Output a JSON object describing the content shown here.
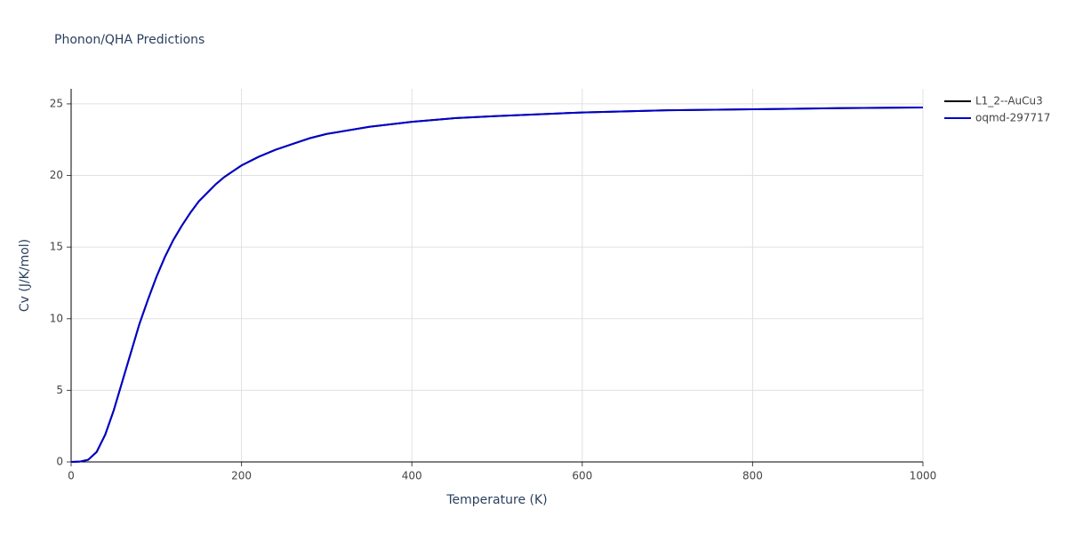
{
  "chart_data": {
    "type": "line",
    "title": "Phonon/QHA Predictions",
    "xlabel": "Temperature (K)",
    "ylabel": "Cv (J/K/mol)",
    "x": [
      0,
      10,
      20,
      30,
      40,
      50,
      60,
      70,
      80,
      90,
      100,
      110,
      120,
      130,
      140,
      150,
      160,
      170,
      180,
      190,
      200,
      220,
      240,
      260,
      280,
      300,
      350,
      400,
      450,
      500,
      600,
      700,
      800,
      900,
      1000
    ],
    "series": [
      {
        "name": "L1_2--AuCu3",
        "color": "#000000",
        "values": [
          0,
          0.02,
          0.15,
          0.7,
          1.9,
          3.6,
          5.6,
          7.6,
          9.6,
          11.3,
          12.9,
          14.3,
          15.5,
          16.5,
          17.4,
          18.2,
          18.8,
          19.4,
          19.9,
          20.3,
          20.7,
          21.3,
          21.8,
          22.2,
          22.6,
          22.9,
          23.4,
          23.75,
          24.0,
          24.15,
          24.4,
          24.55,
          24.62,
          24.7,
          24.75
        ]
      },
      {
        "name": "oqmd-297717",
        "color": "#0000cd",
        "values": [
          0,
          0.02,
          0.15,
          0.7,
          1.9,
          3.6,
          5.6,
          7.6,
          9.6,
          11.3,
          12.9,
          14.3,
          15.5,
          16.5,
          17.4,
          18.2,
          18.8,
          19.4,
          19.9,
          20.3,
          20.7,
          21.3,
          21.8,
          22.2,
          22.6,
          22.9,
          23.4,
          23.75,
          24.0,
          24.15,
          24.4,
          24.55,
          24.62,
          24.7,
          24.75
        ]
      }
    ],
    "xlim": [
      0,
      1000
    ],
    "ylim": [
      0,
      26.05
    ],
    "xticks": [
      0,
      200,
      400,
      600,
      800,
      1000
    ],
    "yticks": [
      0,
      5,
      10,
      15,
      20,
      25
    ],
    "grid": true,
    "legend": "outside-top-right"
  }
}
